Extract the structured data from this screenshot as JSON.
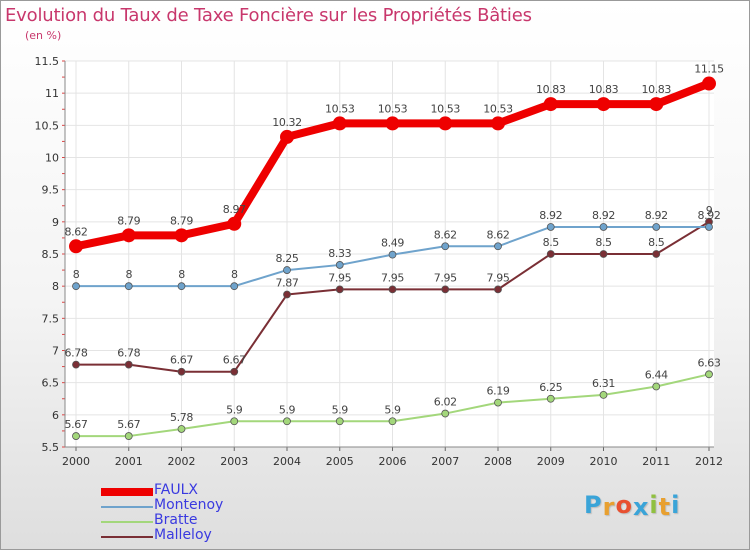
{
  "title": "Evolution du Taux de Taxe Foncière sur les Propriétés Bâties",
  "unit_label": "(en %)",
  "logo": {
    "letters": [
      "P",
      "r",
      "o",
      "x",
      "i",
      "t",
      "i"
    ],
    "colors": [
      "#3aa4d8",
      "#e8a030",
      "#e85030",
      "#3aa4d8",
      "#90c040",
      "#e8a030",
      "#3aa4d8"
    ]
  },
  "chart_data": {
    "type": "line",
    "title": "Evolution du Taux de Taxe Foncière sur les Propriétés Bâties",
    "ylabel": "(en %)",
    "xlabel": "",
    "x": [
      "2000",
      "2001",
      "2002",
      "2003",
      "2004",
      "2005",
      "2006",
      "2007",
      "2008",
      "2009",
      "2010",
      "2011",
      "2012"
    ],
    "ylim": [
      5.5,
      11.5
    ],
    "yticks": [
      "5.5",
      "6",
      "6.5",
      "7",
      "7.5",
      "8",
      "8.5",
      "9",
      "9.5",
      "10",
      "10.5",
      "11",
      "11.5"
    ],
    "grid": true,
    "legend_position": "bottom-left",
    "series": [
      {
        "name": "FAULX",
        "color": "#ee0000",
        "values": [
          8.62,
          8.79,
          8.79,
          8.97,
          10.32,
          10.53,
          10.53,
          10.53,
          10.53,
          10.83,
          10.83,
          10.83,
          11.15
        ],
        "labels": [
          "8.62",
          "8.79",
          "8.79",
          "8.97",
          "10.32",
          "10.53",
          "10.53",
          "10.53",
          "10.53",
          "10.83",
          "10.83",
          "10.83",
          "11.15"
        ]
      },
      {
        "name": "Montenoy",
        "color": "#6fa3cc",
        "values": [
          8,
          8,
          8,
          8,
          8.25,
          8.33,
          8.49,
          8.62,
          8.62,
          8.92,
          8.92,
          8.92,
          8.92
        ],
        "labels": [
          "8",
          "8",
          "8",
          "8",
          "8.25",
          "8.33",
          "8.49",
          "8.62",
          "8.62",
          "8.92",
          "8.92",
          "8.92",
          "8.92"
        ]
      },
      {
        "name": "Bratte",
        "color": "#a3d77b",
        "values": [
          5.67,
          5.67,
          5.78,
          5.9,
          5.9,
          5.9,
          5.9,
          6.02,
          6.19,
          6.25,
          6.31,
          6.44,
          6.63
        ],
        "labels": [
          "5.67",
          "5.67",
          "5.78",
          "5.9",
          "5.9",
          "5.9",
          "5.9",
          "6.02",
          "6.19",
          "6.25",
          "6.31",
          "6.44",
          "6.63"
        ]
      },
      {
        "name": "Malleloy",
        "color": "#7a2f35",
        "values": [
          6.78,
          6.78,
          6.67,
          6.67,
          7.87,
          7.95,
          7.95,
          7.95,
          7.95,
          8.5,
          8.5,
          8.5,
          9
        ],
        "labels": [
          "6.78",
          "6.78",
          "6.67",
          "6.67",
          "7.87",
          "7.95",
          "7.95",
          "7.95",
          "7.95",
          "8.5",
          "8.5",
          "8.5",
          "9"
        ]
      }
    ]
  }
}
